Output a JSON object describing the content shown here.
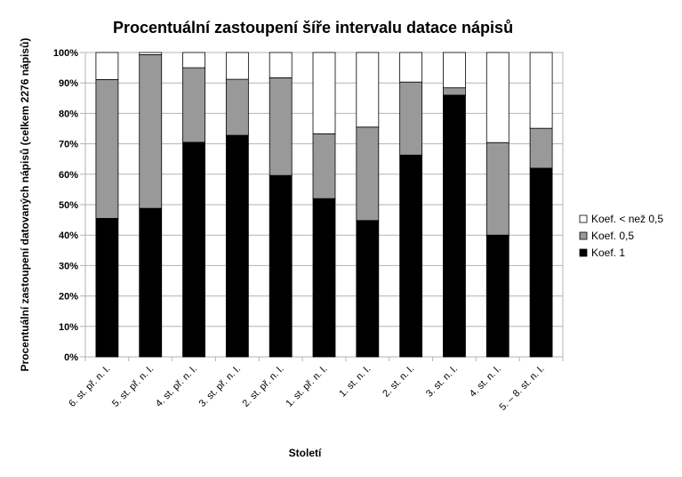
{
  "chart_data": {
    "type": "bar",
    "stacked": true,
    "title": "Procentuální zastoupení šíře intervalu datace nápisů",
    "xlabel": "Století",
    "ylabel": "Procentuální zastoupení datovaných nápisů (celkem 2276 nápisů)",
    "ylim": [
      0,
      100
    ],
    "y_ticks": [
      "0%",
      "10%",
      "20%",
      "30%",
      "40%",
      "50%",
      "60%",
      "70%",
      "80%",
      "90%",
      "100%"
    ],
    "grid": true,
    "legend_position": "right",
    "categories": [
      "6. st. př. n. l.",
      "5. st. př. n. l.",
      "4. st. př. n. l.",
      "3. st. př. n. l.",
      "2. st. př. n. l.",
      "1. st. př. n. l.",
      "1. st. n. l.",
      "2. st. n. l.",
      "3. st. n. l.",
      "4. st. n. l.",
      "5. – 8. st. n. l."
    ],
    "series": [
      {
        "name": "Koef. 1",
        "color": "#000000",
        "values": [
          45.5,
          48.8,
          70.5,
          72.8,
          59.6,
          52.0,
          44.8,
          66.3,
          86.0,
          40.0,
          62.0
        ]
      },
      {
        "name": "Koef. 0,5",
        "color": "#999999",
        "values": [
          45.6,
          50.5,
          24.5,
          18.4,
          32.1,
          21.3,
          30.7,
          24.0,
          2.4,
          30.4,
          13.1
        ]
      },
      {
        "name": "Koef. < než 0,5",
        "color": "#ffffff",
        "values": [
          8.9,
          0.7,
          5.0,
          8.8,
          8.3,
          26.7,
          24.5,
          9.7,
          11.6,
          29.6,
          24.9
        ]
      }
    ],
    "legend_order": [
      "Koef. < než 0,5",
      "Koef. 0,5",
      "Koef. 1"
    ]
  }
}
